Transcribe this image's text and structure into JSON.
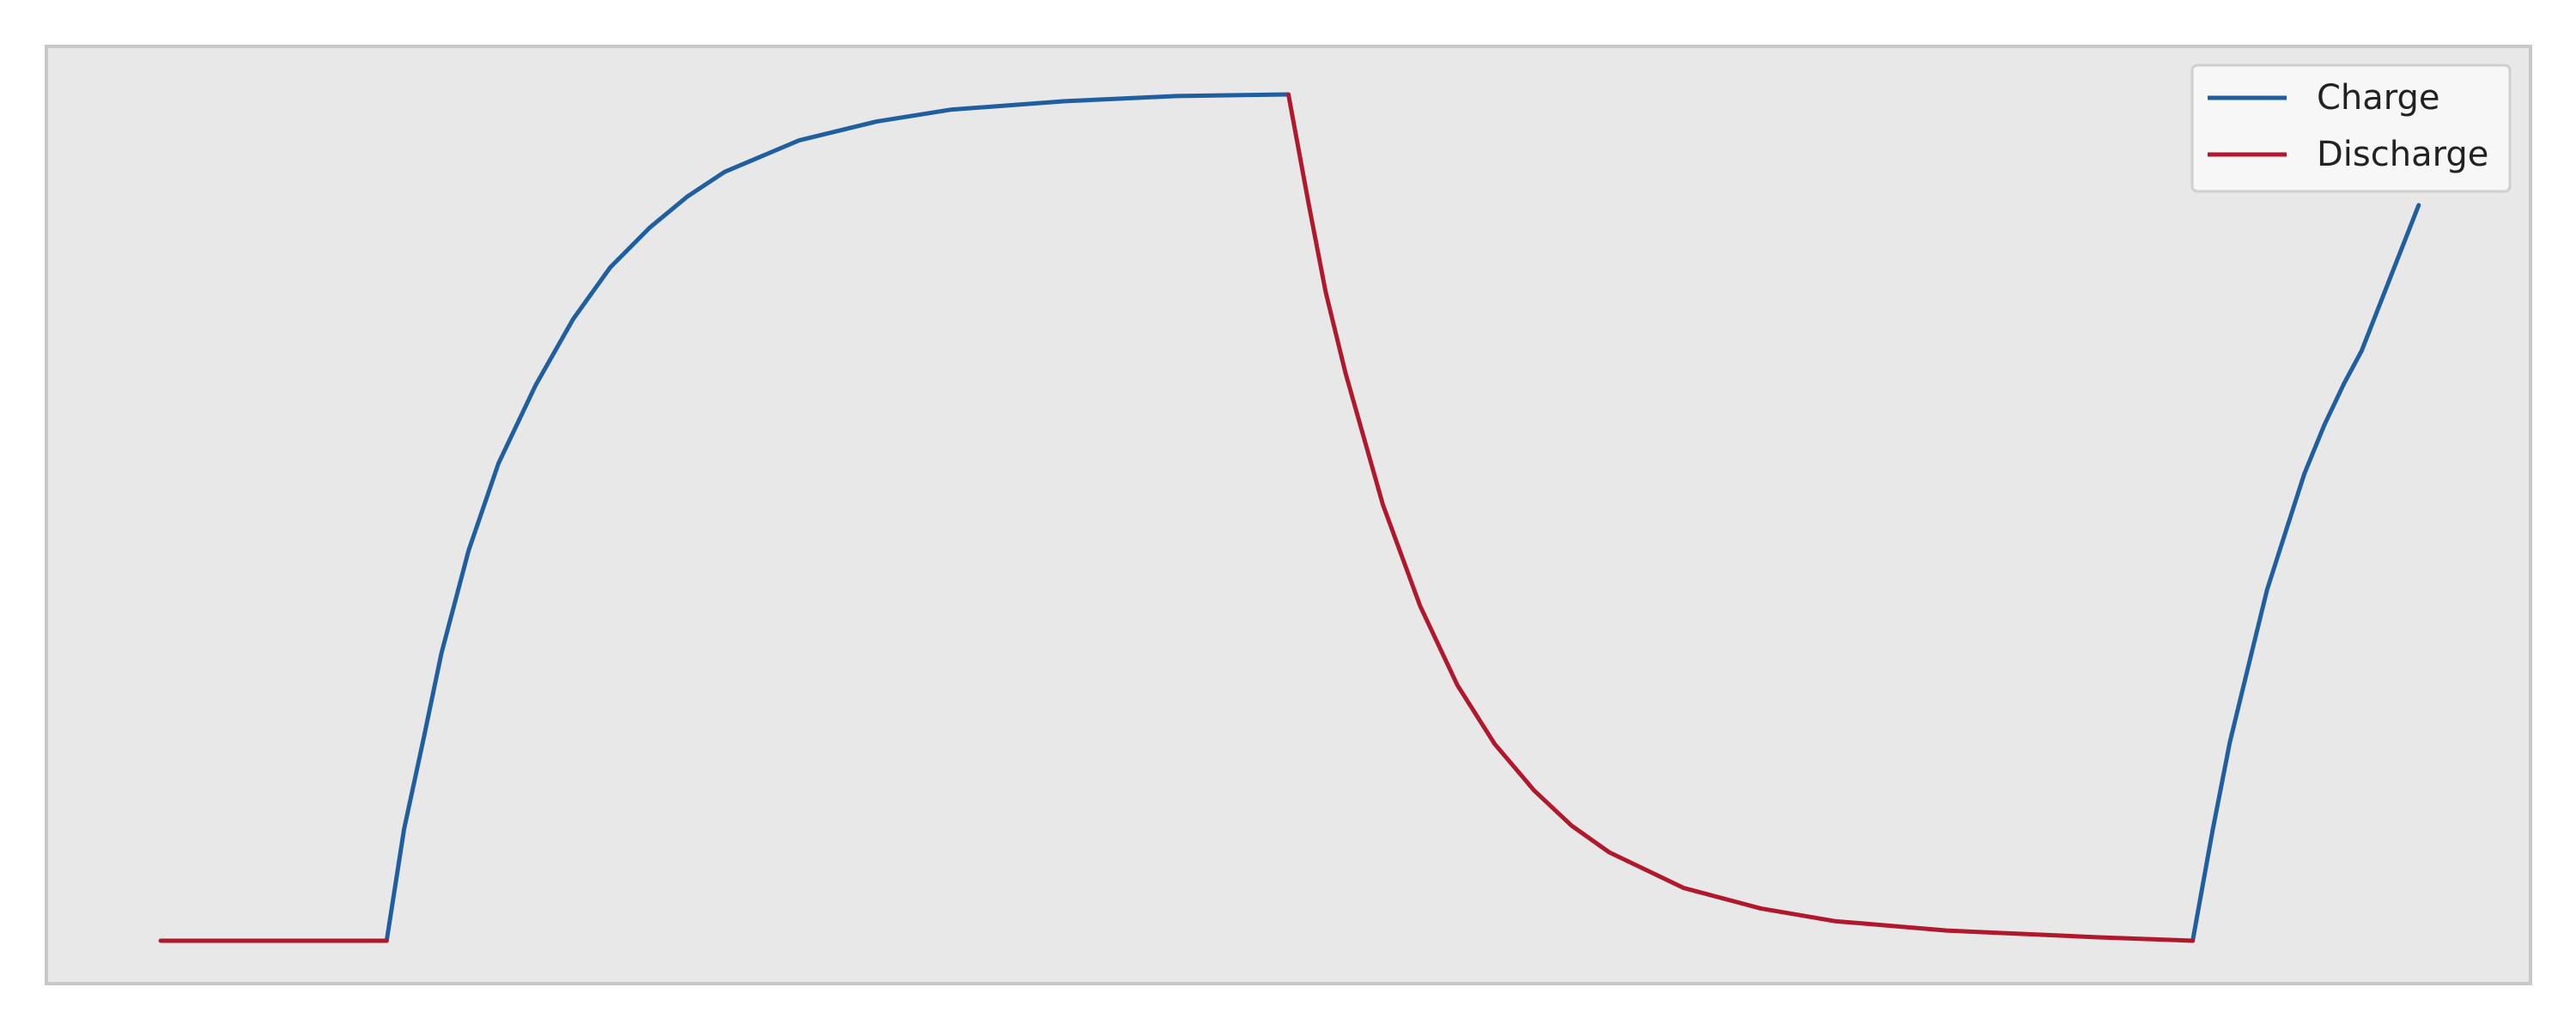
{
  "chart_data": {
    "type": "line",
    "title": "",
    "xlabel": "",
    "ylabel": "",
    "xlim": [
      0,
      1
    ],
    "ylim": [
      0,
      1
    ],
    "grid": false,
    "axes_visible": false,
    "legend": {
      "position": "upper-right"
    },
    "background_color": "#e8e8e8",
    "series": [
      {
        "name": "Charge",
        "color": "#1f5fa0",
        "segments": [
          [
            [
              0.137,
              0.0
            ],
            [
              0.144,
              0.131
            ],
            [
              0.152,
              0.239
            ],
            [
              0.159,
              0.337
            ],
            [
              0.17,
              0.458
            ],
            [
              0.182,
              0.56
            ],
            [
              0.197,
              0.652
            ],
            [
              0.212,
              0.729
            ],
            [
              0.227,
              0.79
            ],
            [
              0.243,
              0.837
            ],
            [
              0.258,
              0.873
            ],
            [
              0.273,
              0.902
            ],
            [
              0.303,
              0.939
            ],
            [
              0.334,
              0.961
            ],
            [
              0.364,
              0.975
            ],
            [
              0.41,
              0.985
            ],
            [
              0.455,
              0.991
            ],
            [
              0.5,
              0.993
            ]
          ],
          [
            [
              0.864,
              0.0
            ],
            [
              0.872,
              0.129
            ],
            [
              0.879,
              0.233
            ],
            [
              0.887,
              0.329
            ],
            [
              0.894,
              0.412
            ],
            [
              0.902,
              0.485
            ],
            [
              0.909,
              0.548
            ],
            [
              0.917,
              0.605
            ],
            [
              0.925,
              0.654
            ],
            [
              0.932,
              0.692
            ],
            [
              0.955,
              0.863
            ]
          ]
        ]
      },
      {
        "name": "Discharge",
        "color": "#b0192c",
        "segments": [
          [
            [
              0.046,
              0.0
            ],
            [
              0.137,
              0.0
            ]
          ],
          [
            [
              0.5,
              0.993
            ],
            [
              0.508,
              0.867
            ],
            [
              0.515,
              0.761
            ],
            [
              0.523,
              0.666
            ],
            [
              0.538,
              0.512
            ],
            [
              0.553,
              0.393
            ],
            [
              0.568,
              0.3
            ],
            [
              0.583,
              0.231
            ],
            [
              0.599,
              0.176
            ],
            [
              0.614,
              0.135
            ],
            [
              0.629,
              0.104
            ],
            [
              0.659,
              0.062
            ],
            [
              0.69,
              0.038
            ],
            [
              0.72,
              0.023
            ],
            [
              0.765,
              0.012
            ],
            [
              0.826,
              0.004
            ],
            [
              0.864,
              0.0
            ]
          ]
        ]
      }
    ]
  }
}
